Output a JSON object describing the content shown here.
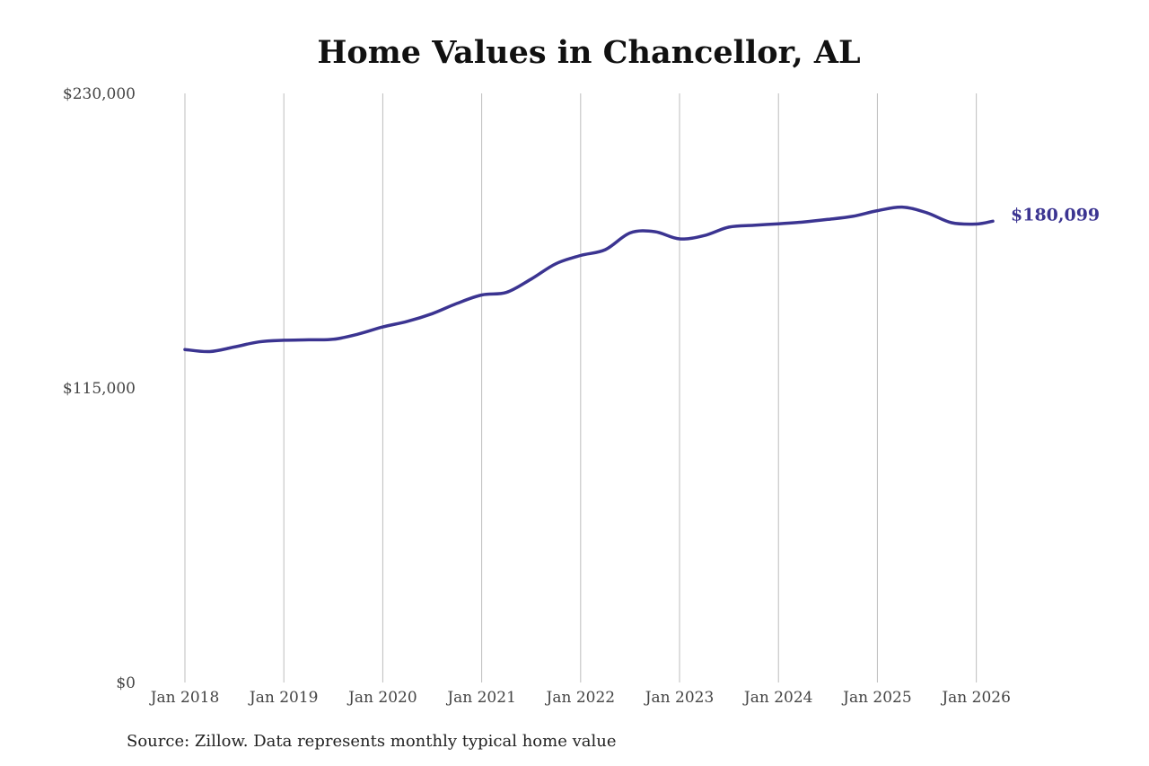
{
  "chart_data": {
    "type": "line",
    "title": "Home Values in Chancellor, AL",
    "source": "Source: Zillow. Data represents monthly typical home value",
    "xlabel": "",
    "ylabel": "",
    "ylim": [
      0,
      230000
    ],
    "yticks": [
      {
        "value": 0,
        "label": "$0"
      },
      {
        "value": 115000,
        "label": "$115,000"
      },
      {
        "value": 230000,
        "label": "$230,000"
      }
    ],
    "xlim": [
      "2018-01",
      "2026-03"
    ],
    "xticks": [
      {
        "date": "2018-01",
        "label": "Jan 2018"
      },
      {
        "date": "2019-01",
        "label": "Jan 2019"
      },
      {
        "date": "2020-01",
        "label": "Jan 2020"
      },
      {
        "date": "2021-01",
        "label": "Jan 2021"
      },
      {
        "date": "2022-01",
        "label": "Jan 2022"
      },
      {
        "date": "2023-01",
        "label": "Jan 2023"
      },
      {
        "date": "2024-01",
        "label": "Jan 2024"
      },
      {
        "date": "2025-01",
        "label": "Jan 2025"
      },
      {
        "date": "2026-01",
        "label": "Jan 2026"
      }
    ],
    "grid": "vertical",
    "end_label": "$180,099",
    "colors": {
      "line": "#3b3491",
      "grid": "#bdbdbd",
      "text": "#444444"
    },
    "series": [
      {
        "name": "",
        "points": [
          {
            "x": "2018-01",
            "y": 130000
          },
          {
            "x": "2018-04",
            "y": 129200
          },
          {
            "x": "2018-07",
            "y": 131000
          },
          {
            "x": "2018-10",
            "y": 133000
          },
          {
            "x": "2019-01",
            "y": 133600
          },
          {
            "x": "2019-04",
            "y": 133800
          },
          {
            "x": "2019-07",
            "y": 134000
          },
          {
            "x": "2019-10",
            "y": 136000
          },
          {
            "x": "2020-01",
            "y": 138800
          },
          {
            "x": "2020-04",
            "y": 141000
          },
          {
            "x": "2020-07",
            "y": 144000
          },
          {
            "x": "2020-10",
            "y": 148000
          },
          {
            "x": "2021-01",
            "y": 151300
          },
          {
            "x": "2021-04",
            "y": 152300
          },
          {
            "x": "2021-07",
            "y": 157500
          },
          {
            "x": "2021-10",
            "y": 163500
          },
          {
            "x": "2022-01",
            "y": 166700
          },
          {
            "x": "2022-04",
            "y": 169000
          },
          {
            "x": "2022-07",
            "y": 175500
          },
          {
            "x": "2022-10",
            "y": 176000
          },
          {
            "x": "2023-01",
            "y": 173200
          },
          {
            "x": "2023-04",
            "y": 174500
          },
          {
            "x": "2023-07",
            "y": 177800
          },
          {
            "x": "2023-10",
            "y": 178500
          },
          {
            "x": "2024-01",
            "y": 179100
          },
          {
            "x": "2024-04",
            "y": 179800
          },
          {
            "x": "2024-07",
            "y": 180800
          },
          {
            "x": "2024-10",
            "y": 182000
          },
          {
            "x": "2025-01",
            "y": 184200
          },
          {
            "x": "2025-04",
            "y": 185600
          },
          {
            "x": "2025-07",
            "y": 183400
          },
          {
            "x": "2025-10",
            "y": 179500
          },
          {
            "x": "2026-01",
            "y": 179000
          },
          {
            "x": "2026-03",
            "y": 180099
          }
        ]
      }
    ]
  }
}
